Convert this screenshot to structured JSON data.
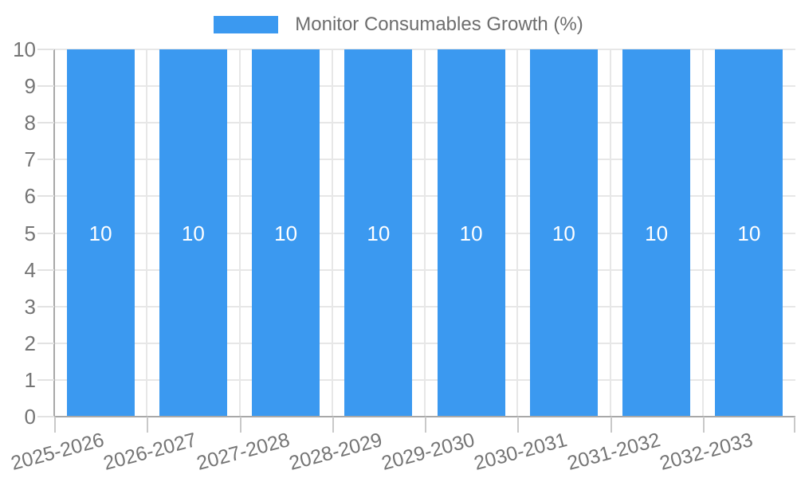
{
  "chart_data": {
    "type": "bar",
    "title": "Monitor Consumables Growth (%)",
    "categories": [
      "2025-2026",
      "2026-2027",
      "2027-2028",
      "2028-2029",
      "2029-2030",
      "2030-2031",
      "2031-2032",
      "2032-2033"
    ],
    "series": [
      {
        "name": "Monitor Consumables Growth (%)",
        "color": "#3b99f0",
        "values": [
          10,
          10,
          10,
          10,
          10,
          10,
          10,
          10
        ]
      }
    ],
    "bar_value_labels": [
      "10",
      "10",
      "10",
      "10",
      "10",
      "10",
      "10",
      "10"
    ],
    "xlabel": "",
    "ylabel": "",
    "ylim": [
      0,
      10
    ],
    "y_ticks": [
      0,
      1,
      2,
      3,
      4,
      5,
      6,
      7,
      8,
      9,
      10
    ],
    "grid": "on",
    "legend_position": "top-center",
    "x_label_rotation_deg": -15
  },
  "colors": {
    "background": "#ffffff",
    "bar": "#3b99f0",
    "gridline": "#e7e7e7",
    "axis_line": "#a8a8a8",
    "x_tick": "#c9c9c9",
    "y_tick": "#e2e2e2",
    "axis_label": "#757575",
    "legend_text": "#6e6e6e",
    "bar_label_text": "#ffffff"
  }
}
